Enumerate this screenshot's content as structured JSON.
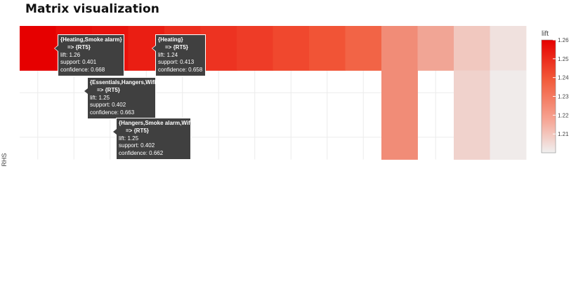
{
  "page": {
    "title": "Matrix visualization"
  },
  "chart_data": {
    "type": "heatmap",
    "title": "",
    "xlabel": "",
    "ylabel": "RHS",
    "legend_title": "lift",
    "legend_ticks": [
      "1.26",
      "1.25",
      "1.24",
      "1.23",
      "1.22",
      "1.21"
    ],
    "color_range": [
      1.2,
      1.26
    ],
    "color_low": "#f0f0f0",
    "color_high": "#e60000",
    "grid": true,
    "legend_position": "right",
    "rows": 3,
    "cells": [
      {
        "row": 0,
        "col": 0,
        "lift": 1.262
      },
      {
        "row": 0,
        "col": 1,
        "lift": 1.256
      },
      {
        "row": 0,
        "col": 2,
        "lift": 1.254
      },
      {
        "row": 0,
        "col": 3,
        "lift": 1.25
      },
      {
        "row": 0,
        "col": 4,
        "lift": 1.245
      },
      {
        "row": 0,
        "col": 5,
        "lift": 1.243
      },
      {
        "row": 0,
        "col": 6,
        "lift": 1.24
      },
      {
        "row": 0,
        "col": 7,
        "lift": 1.236
      },
      {
        "row": 0,
        "col": 8,
        "lift": 1.232
      },
      {
        "row": 0,
        "col": 9,
        "lift": 1.228
      },
      {
        "row": 0,
        "col": 10,
        "lift": 1.22
      },
      {
        "row": 0,
        "col": 11,
        "lift": 1.215
      },
      {
        "row": 0,
        "col": 12,
        "lift": 1.208
      },
      {
        "row": 0,
        "col": 13,
        "lift": 1.203
      },
      {
        "row": 1,
        "col": 10,
        "lift": 1.22
      },
      {
        "row": 1,
        "col": 12,
        "lift": 1.206
      },
      {
        "row": 1,
        "col": 13,
        "lift": 1.201
      },
      {
        "row": 2,
        "col": 10,
        "lift": 1.22
      },
      {
        "row": 2,
        "col": 12,
        "lift": 1.206
      },
      {
        "row": 2,
        "col": 13,
        "lift": 1.201
      }
    ]
  },
  "tooltips": [
    {
      "lhs": "{Heating,Smoke alarm}",
      "rhs": "=> {RT5}",
      "lift": "lift: 1.26",
      "support": "support: 0.401",
      "confidence": "confidence: 0.668"
    },
    {
      "lhs": "{Heating}",
      "rhs": "=> {RT5}",
      "lift": "lift: 1.24",
      "support": "support: 0.413",
      "confidence": "confidence: 0.658"
    },
    {
      "lhs": "{Essentials,Hangers,Wifi}",
      "rhs": "=> {RT5}",
      "lift": "lift: 1.25",
      "support": "support: 0.402",
      "confidence": "confidence: 0.663"
    },
    {
      "lhs": "{Hangers,Smoke alarm,Wifi}",
      "rhs": "=> {RT5}",
      "lift": "lift: 1.25",
      "support": "support: 0.402",
      "confidence": "confidence: 0.662"
    }
  ]
}
